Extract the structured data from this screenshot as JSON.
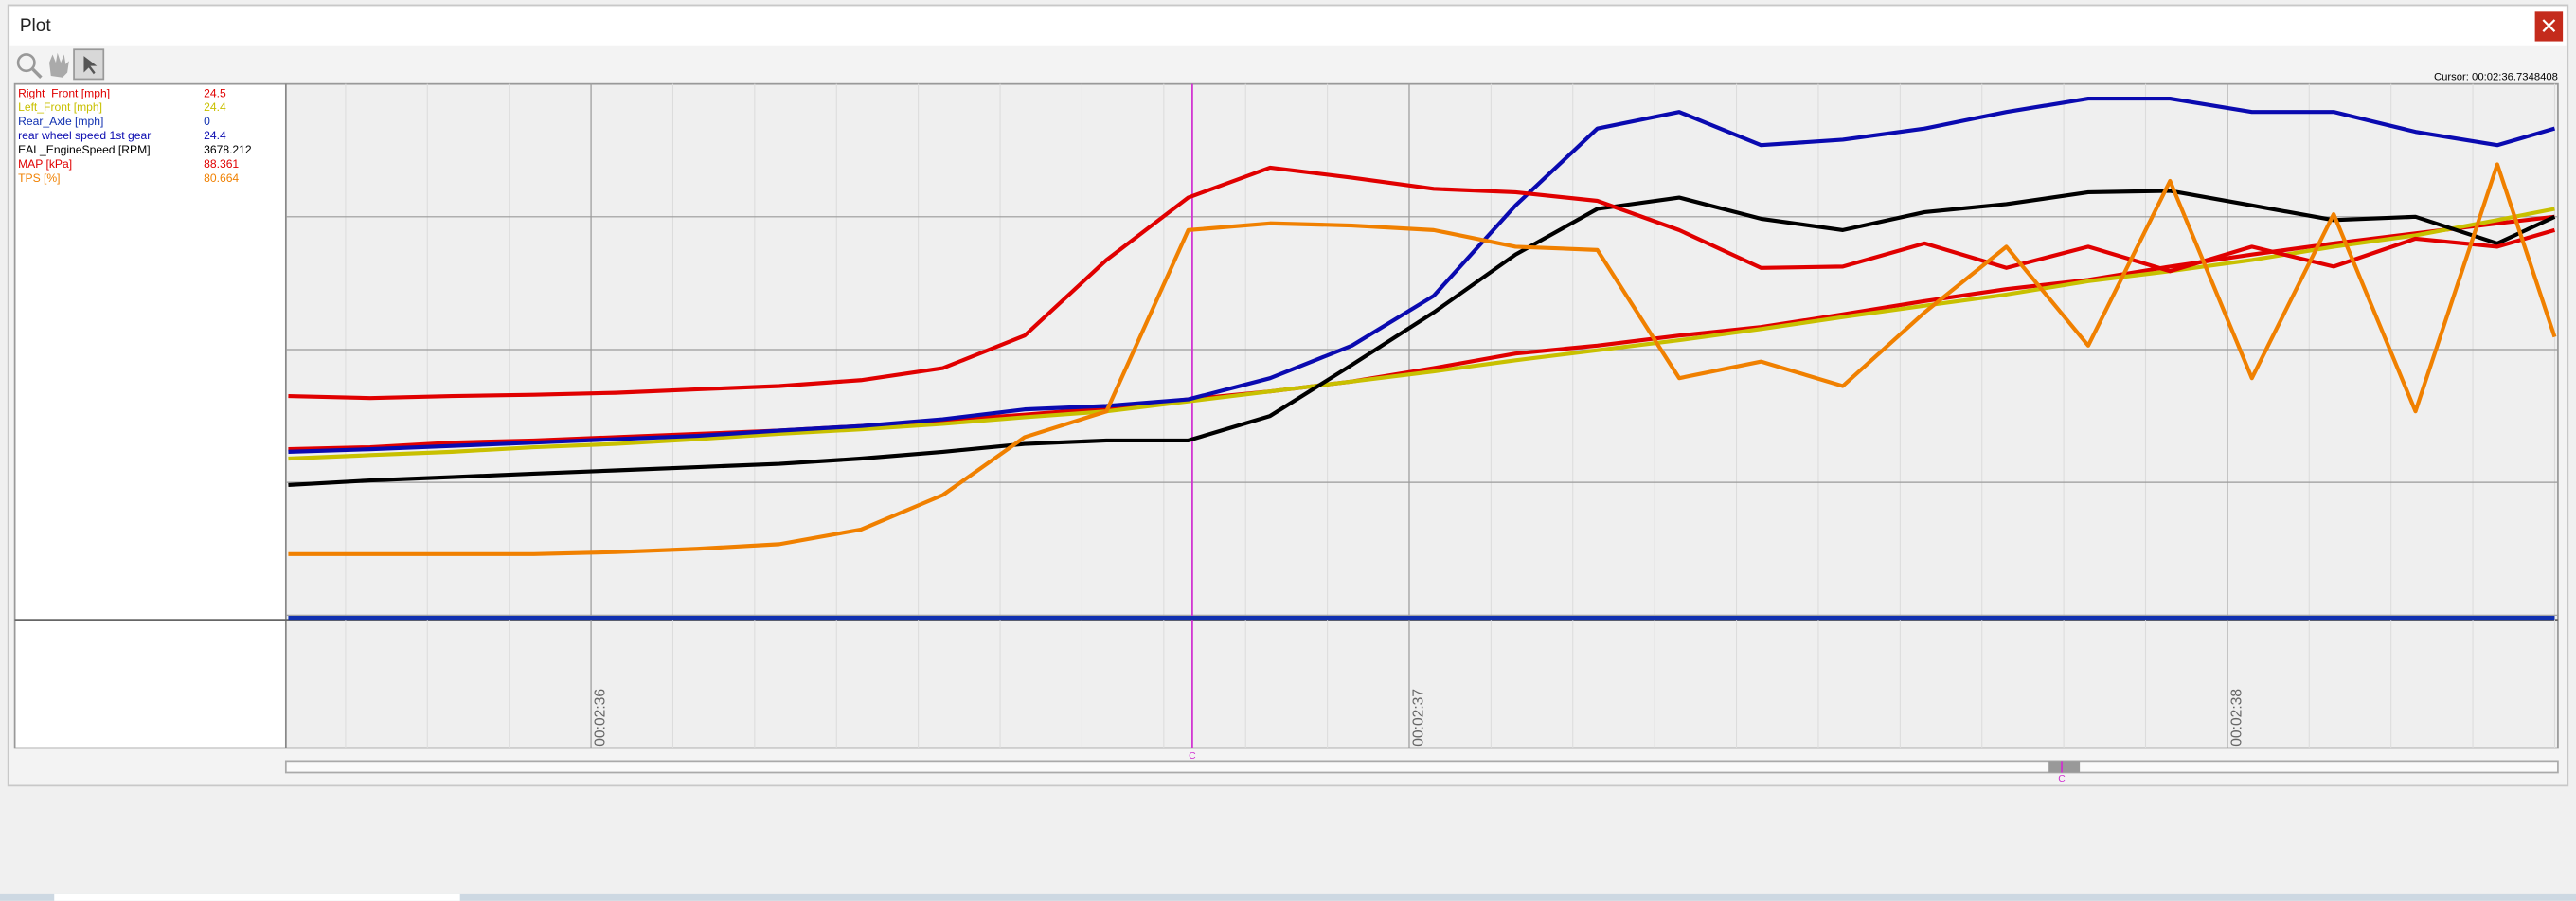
{
  "window": {
    "title": "Plot"
  },
  "chart_data": {
    "type": "line",
    "cursor_label": "Cursor: 00:02:36.7348408",
    "cursor_x": 156.7348408,
    "cursor_marker": "C",
    "x": [
      155.63,
      155.73,
      155.83,
      155.93,
      156.03,
      156.13,
      156.23,
      156.33,
      156.43,
      156.53,
      156.63,
      156.73,
      156.83,
      156.93,
      157.03,
      157.13,
      157.23,
      157.33,
      157.43,
      157.53,
      157.63,
      157.73,
      157.83,
      157.93,
      158.03,
      158.13,
      158.23,
      158.33,
      158.4
    ],
    "xlim": [
      155.627,
      158.404
    ],
    "xticks": [
      {
        "value": 156,
        "label": "00:02:36"
      },
      {
        "value": 157,
        "label": "00:02:37"
      },
      {
        "value": 158,
        "label": "00:02:38"
      }
    ],
    "ylim": [
      0,
      100
    ],
    "yticks": [
      20,
      40,
      60,
      80
    ],
    "grid": true,
    "series": [
      {
        "name": "Right_Front [mph]",
        "cursor_value": 24.5,
        "color": "#e00000",
        "values": [
          45.0,
          45.3,
          46.0,
          46.3,
          46.8,
          47.3,
          47.8,
          48.5,
          49.3,
          50.2,
          51.2,
          52.5,
          53.7,
          55.2,
          57.2,
          59.4,
          60.6,
          62.1,
          63.4,
          65.3,
          67.3,
          69.1,
          70.5,
          72.5,
          74.3,
          76.0,
          77.5,
          79.0,
          80.0
        ]
      },
      {
        "name": "Left_Front [mph]",
        "cursor_value": 24.4,
        "color": "#c8c000",
        "values": [
          43.6,
          44.1,
          44.6,
          45.3,
          45.8,
          46.5,
          47.3,
          48.0,
          48.8,
          49.8,
          50.7,
          52.2,
          53.7,
          55.2,
          56.7,
          58.4,
          59.9,
          61.4,
          63.1,
          64.9,
          66.6,
          68.3,
          70.3,
          71.8,
          73.5,
          75.5,
          77.2,
          79.5,
          81.2
        ]
      },
      {
        "name": "Rear_Axle [mph]",
        "cursor_value": 0,
        "color": "#1030b0",
        "values": [
          19.6,
          19.6,
          19.6,
          19.6,
          19.6,
          19.6,
          19.6,
          19.6,
          19.6,
          19.6,
          19.6,
          19.6,
          19.6,
          19.6,
          19.6,
          19.6,
          19.6,
          19.6,
          19.6,
          19.6,
          19.6,
          19.6,
          19.6,
          19.6,
          19.6,
          19.6,
          19.6,
          19.6,
          19.6
        ]
      },
      {
        "name": "rear wheel speed 1st gear",
        "cursor_value": 24.4,
        "color": "#0a0ab0",
        "values": [
          44.6,
          45.0,
          45.5,
          46.0,
          46.5,
          47.0,
          47.8,
          48.5,
          49.5,
          51.0,
          51.5,
          52.5,
          55.7,
          60.6,
          68.1,
          81.7,
          93.3,
          95.8,
          90.8,
          91.6,
          93.3,
          95.8,
          97.8,
          97.8,
          95.8,
          95.8,
          92.8,
          90.8,
          93.3
        ]
      },
      {
        "name": "EAL_EngineSpeed [RPM]",
        "cursor_value": 3678.212,
        "color": "#000000",
        "values": [
          39.6,
          40.3,
          40.8,
          41.3,
          41.8,
          42.3,
          42.8,
          43.6,
          44.6,
          45.8,
          46.3,
          46.3,
          50.0,
          57.7,
          65.6,
          74.3,
          81.2,
          82.9,
          79.7,
          78.0,
          80.7,
          81.9,
          83.7,
          83.9,
          81.7,
          79.5,
          80.0,
          76.0,
          80.0
        ]
      },
      {
        "name": "MAP [kPa]",
        "cursor_value": 88.361,
        "color": "#e00000",
        "values": [
          53.0,
          52.7,
          53.0,
          53.2,
          53.5,
          54.0,
          54.5,
          55.4,
          57.2,
          62.1,
          73.5,
          82.9,
          87.4,
          85.9,
          84.2,
          83.7,
          82.4,
          78.0,
          72.3,
          72.5,
          76.0,
          72.3,
          75.5,
          71.8,
          75.5,
          72.5,
          76.7,
          75.5,
          78.0
        ]
      },
      {
        "name": "TPS [%]",
        "cursor_value": 80.664,
        "color": "#f08000",
        "values": [
          29.2,
          29.2,
          29.2,
          29.2,
          29.5,
          30.0,
          30.7,
          32.9,
          38.1,
          46.8,
          50.7,
          78.0,
          79.0,
          78.7,
          78.0,
          75.5,
          75.0,
          55.7,
          58.2,
          54.5,
          65.6,
          75.5,
          60.6,
          85.4,
          55.7,
          80.4,
          50.7,
          87.9,
          61.9
        ]
      }
    ]
  }
}
